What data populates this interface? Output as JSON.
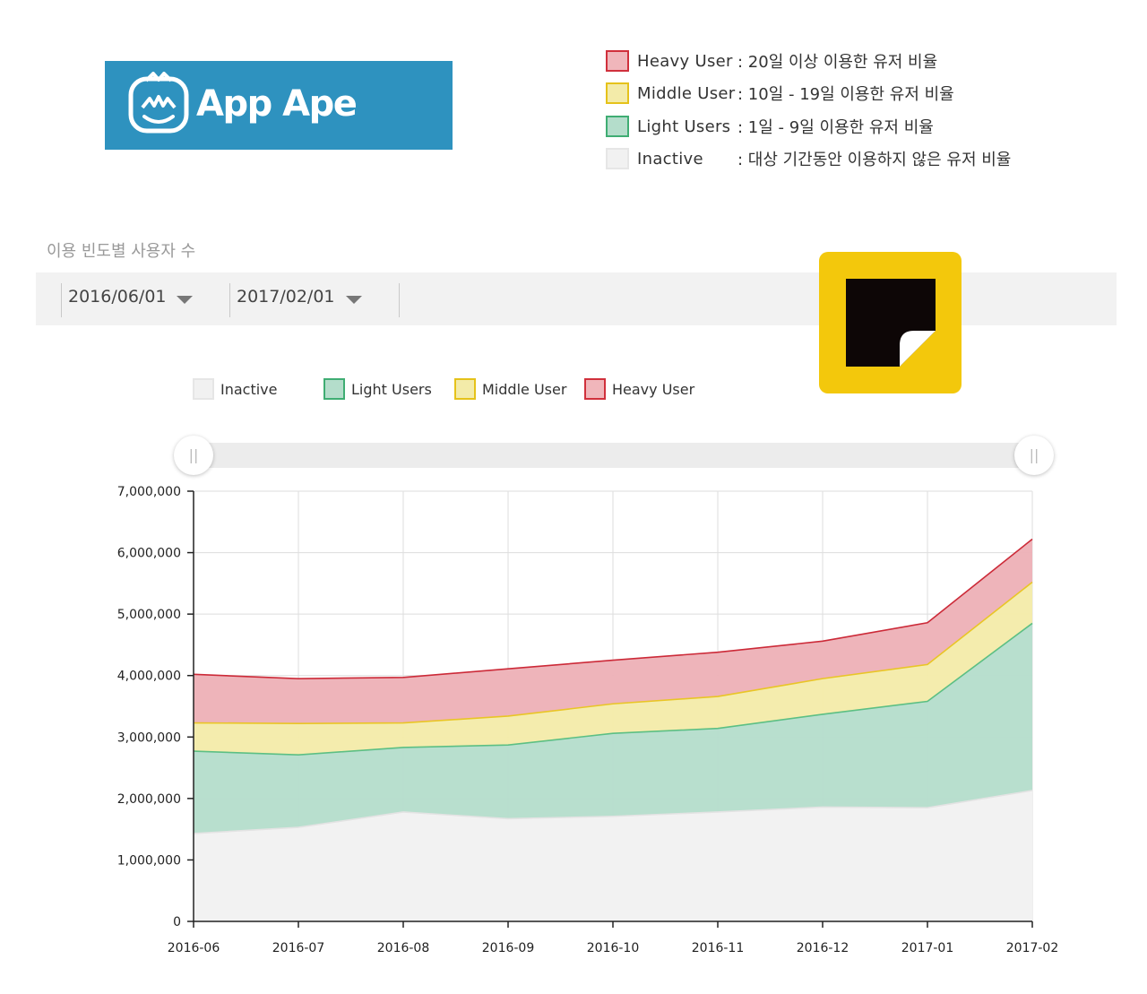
{
  "logo": {
    "text": "App Ape"
  },
  "definitions": [
    {
      "label": "Heavy User",
      "desc": ": 20일 이상 이용한 유저 비율",
      "fill": "#f0b6bb",
      "stroke": "#d0303c"
    },
    {
      "label": "Middle User",
      "desc": ": 10일 - 19일 이용한 유저 비율",
      "fill": "#f3eba9",
      "stroke": "#e5c21a"
    },
    {
      "label": "Light Users",
      "desc": ": 1일 - 9일 이용한 유저 비율",
      "fill": "#b4ddcb",
      "stroke": "#3fad73"
    },
    {
      "label": "Inactive",
      "desc": ": 대상 기간동안 이용하지 않은 유저 비율",
      "fill": "#f1f1f1",
      "stroke": "#e3e3e3"
    }
  ],
  "section": {
    "title": "이용 빈도별 사용자 수"
  },
  "filters": {
    "start_date": "2016/06/01",
    "end_date": "2017/02/01"
  },
  "slider": {
    "handle_glyph": "||"
  },
  "chart_data": {
    "type": "area",
    "stacked": true,
    "categories": [
      "2016-06",
      "2016-07",
      "2016-08",
      "2016-09",
      "2016-10",
      "2016-11",
      "2016-12",
      "2017-01",
      "2017-02"
    ],
    "ylim": [
      0,
      7000000
    ],
    "yticks": [
      0,
      1000000,
      2000000,
      3000000,
      4000000,
      5000000,
      6000000,
      7000000
    ],
    "ytick_labels": [
      "0",
      "1,000,000",
      "2,000,000",
      "3,000,000",
      "4,000,000",
      "5,000,000",
      "6,000,000",
      "7,000,000"
    ],
    "grid": true,
    "legend_position": "top",
    "series": [
      {
        "name": "Inactive",
        "fill": "#f1f1f1",
        "stroke": "#e3e3e3",
        "values": [
          1430000,
          1530000,
          1780000,
          1670000,
          1710000,
          1780000,
          1860000,
          1850000,
          2130000
        ]
      },
      {
        "name": "Light Users",
        "fill": "#b4ddcb",
        "stroke": "#5cbf84",
        "values": [
          1340000,
          1180000,
          1050000,
          1200000,
          1350000,
          1360000,
          1510000,
          1730000,
          2720000
        ]
      },
      {
        "name": "Middle User",
        "fill": "#f3eba9",
        "stroke": "#e9c526",
        "values": [
          460000,
          510000,
          400000,
          470000,
          480000,
          520000,
          580000,
          600000,
          670000
        ]
      },
      {
        "name": "Heavy User",
        "fill": "#edb0b6",
        "stroke": "#cc2a38",
        "values": [
          790000,
          730000,
          740000,
          770000,
          710000,
          720000,
          610000,
          680000,
          700000
        ]
      }
    ]
  }
}
